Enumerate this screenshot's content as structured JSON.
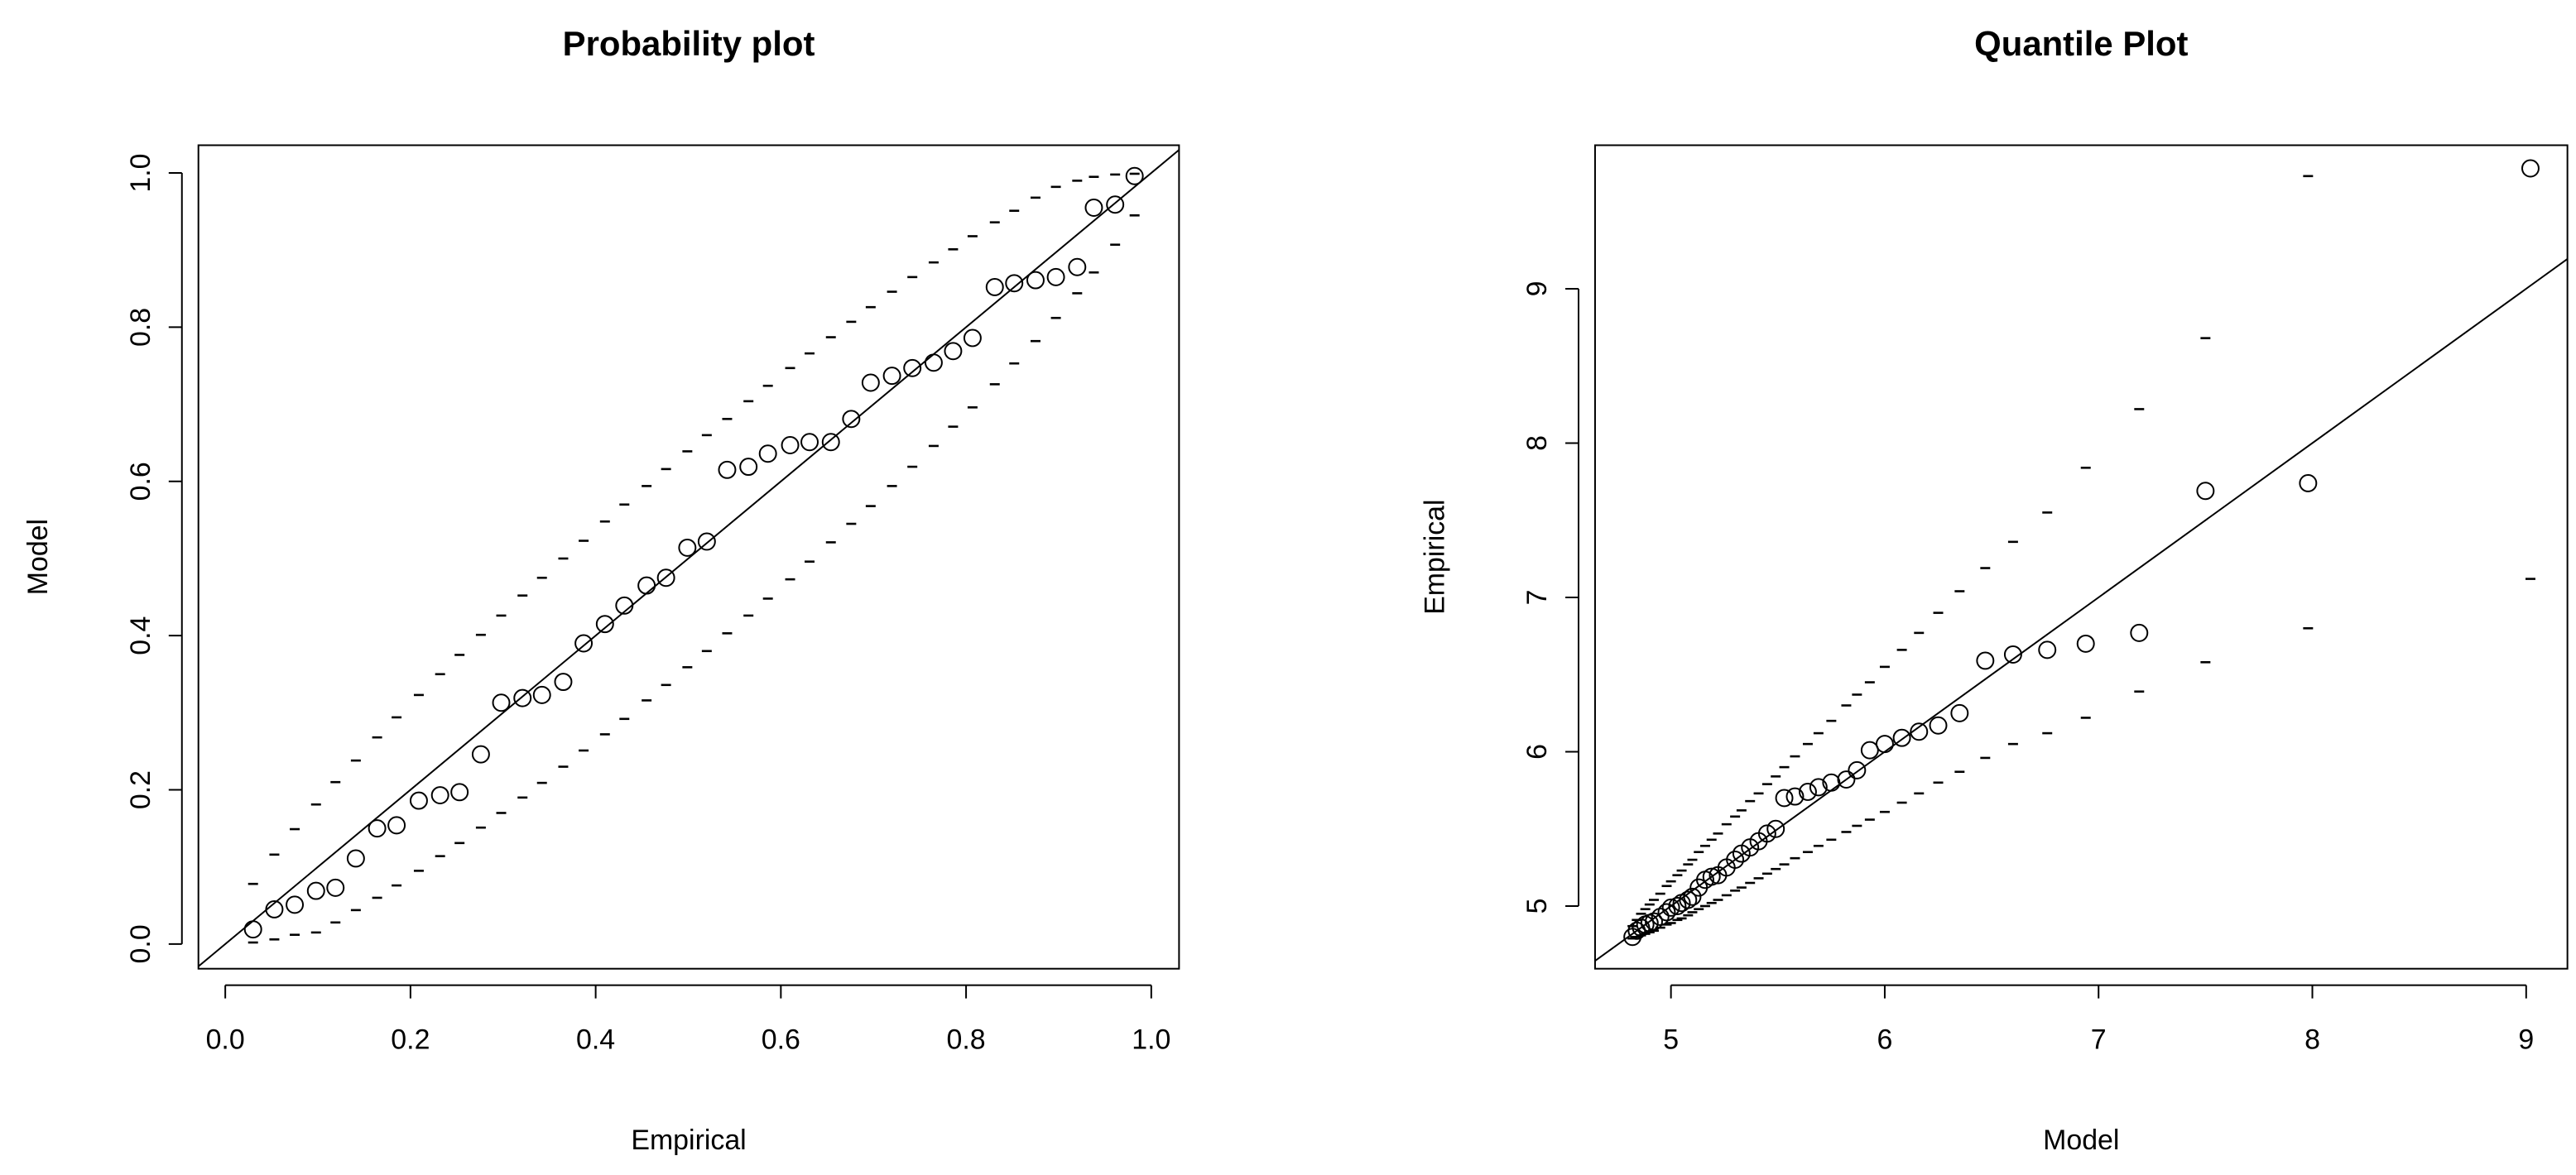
{
  "chart_data": [
    {
      "type": "scatter",
      "title": "Probability plot",
      "xlabel": "Empirical",
      "ylabel": "Model",
      "color": "#000000",
      "xlim": [
        -0.029,
        1.03
      ],
      "ylim": [
        -0.032,
        1.036
      ],
      "xticks": [
        {
          "value": 0,
          "label": "0.0"
        },
        0.2,
        0.4,
        0.6,
        0.8,
        {
          "value": 1,
          "label": "1.0"
        }
      ],
      "yticks": [
        {
          "value": 0,
          "label": "0.0"
        },
        0.2,
        0.4,
        0.6,
        0.8,
        {
          "value": 1,
          "label": "1.0"
        }
      ],
      "x": [
        0.03,
        0.053,
        0.075,
        0.098,
        0.119,
        0.141,
        0.164,
        0.185,
        0.209,
        0.232,
        0.253,
        0.276,
        0.298,
        0.321,
        0.342,
        0.365,
        0.387,
        0.41,
        0.431,
        0.455,
        0.476,
        0.499,
        0.52,
        0.542,
        0.565,
        0.586,
        0.61,
        0.631,
        0.654,
        0.676,
        0.697,
        0.72,
        0.742,
        0.765,
        0.786,
        0.807,
        0.831,
        0.852,
        0.875,
        0.897,
        0.92,
        0.938,
        0.961,
        0.982
      ],
      "y": [
        0.019,
        0.045,
        0.051,
        0.069,
        0.073,
        0.111,
        0.15,
        0.154,
        0.186,
        0.193,
        0.197,
        0.246,
        0.313,
        0.319,
        0.323,
        0.34,
        0.39,
        0.415,
        0.439,
        0.465,
        0.475,
        0.514,
        0.522,
        0.615,
        0.619,
        0.636,
        0.647,
        0.651,
        0.651,
        0.681,
        0.728,
        0.737,
        0.747,
        0.754,
        0.769,
        0.786,
        0.852,
        0.857,
        0.861,
        0.865,
        0.878,
        0.955,
        0.959,
        0.996
      ],
      "upper": [
        0.078,
        0.116,
        0.149,
        0.181,
        0.21,
        0.238,
        0.268,
        0.294,
        0.323,
        0.35,
        0.375,
        0.401,
        0.426,
        0.452,
        0.475,
        0.5,
        0.523,
        0.548,
        0.57,
        0.594,
        0.616,
        0.639,
        0.66,
        0.681,
        0.704,
        0.724,
        0.747,
        0.766,
        0.787,
        0.807,
        0.826,
        0.846,
        0.865,
        0.884,
        0.901,
        0.918,
        0.936,
        0.951,
        0.968,
        0.982,
        0.99,
        0.995,
        0.998,
        0.999
      ],
      "lower": [
        0.002,
        0.006,
        0.012,
        0.015,
        0.028,
        0.044,
        0.06,
        0.076,
        0.095,
        0.114,
        0.131,
        0.151,
        0.17,
        0.19,
        0.209,
        0.23,
        0.251,
        0.272,
        0.292,
        0.316,
        0.336,
        0.359,
        0.38,
        0.403,
        0.426,
        0.448,
        0.473,
        0.496,
        0.521,
        0.545,
        0.568,
        0.594,
        0.619,
        0.646,
        0.671,
        0.696,
        0.726,
        0.753,
        0.782,
        0.812,
        0.844,
        0.871,
        0.907,
        0.945
      ],
      "reference_line": {
        "x": [
          -0.029,
          1.03
        ],
        "y": [
          -0.029,
          1.03
        ]
      }
    },
    {
      "type": "scatter",
      "title": "Quantile Plot",
      "xlabel": "Model",
      "ylabel": "Empirical",
      "color": "#000000",
      "xlim": [
        4.645,
        9.193
      ],
      "ylim": [
        4.594,
        9.93
      ],
      "xticks": [
        5,
        6,
        7,
        8,
        9
      ],
      "yticks": [
        5,
        6,
        7,
        8,
        9
      ],
      "x": [
        4.82,
        4.84,
        4.86,
        4.88,
        4.9,
        4.92,
        4.95,
        4.98,
        5.0,
        5.03,
        5.05,
        5.08,
        5.1,
        5.13,
        5.16,
        5.19,
        5.22,
        5.26,
        5.3,
        5.33,
        5.37,
        5.41,
        5.45,
        5.49,
        5.53,
        5.58,
        5.64,
        5.69,
        5.75,
        5.82,
        5.87,
        5.93,
        6.0,
        6.08,
        6.16,
        6.25,
        6.35,
        6.47,
        6.6,
        6.76,
        6.94,
        7.19,
        7.5,
        7.98,
        9.02
      ],
      "y": [
        4.8,
        4.84,
        4.86,
        4.88,
        4.89,
        4.9,
        4.93,
        4.96,
        4.99,
        5.0,
        5.02,
        5.04,
        5.06,
        5.12,
        5.17,
        5.19,
        5.2,
        5.25,
        5.3,
        5.34,
        5.38,
        5.42,
        5.47,
        5.5,
        5.7,
        5.71,
        5.74,
        5.77,
        5.8,
        5.82,
        5.88,
        6.01,
        6.05,
        6.09,
        6.13,
        6.17,
        6.25,
        6.59,
        6.63,
        6.66,
        6.7,
        6.77,
        7.69,
        7.74,
        9.78
      ],
      "upper": [
        4.87,
        4.91,
        4.95,
        4.98,
        5.01,
        5.04,
        5.08,
        5.13,
        5.16,
        5.2,
        5.23,
        5.27,
        5.3,
        5.35,
        5.39,
        5.43,
        5.47,
        5.53,
        5.58,
        5.62,
        5.68,
        5.73,
        5.79,
        5.84,
        5.9,
        5.97,
        6.05,
        6.12,
        6.2,
        6.3,
        6.37,
        6.45,
        6.55,
        6.66,
        6.77,
        6.9,
        7.04,
        7.19,
        7.36,
        7.55,
        7.84,
        8.22,
        8.68,
        9.73,
        null
      ],
      "lower": [
        4.79,
        4.8,
        4.81,
        4.82,
        4.83,
        4.84,
        4.86,
        4.88,
        4.89,
        4.91,
        4.92,
        4.94,
        4.96,
        4.98,
        5.0,
        5.02,
        5.04,
        5.07,
        5.1,
        5.12,
        5.15,
        5.18,
        5.21,
        5.24,
        5.27,
        5.31,
        5.35,
        5.39,
        5.43,
        5.48,
        5.52,
        5.56,
        5.61,
        5.67,
        5.73,
        5.8,
        5.87,
        5.96,
        6.05,
        6.12,
        6.22,
        6.39,
        6.58,
        6.8,
        7.12
      ],
      "reference_line": {
        "x": [
          4.645,
          9.193
        ],
        "y": [
          4.645,
          9.193
        ]
      }
    }
  ]
}
